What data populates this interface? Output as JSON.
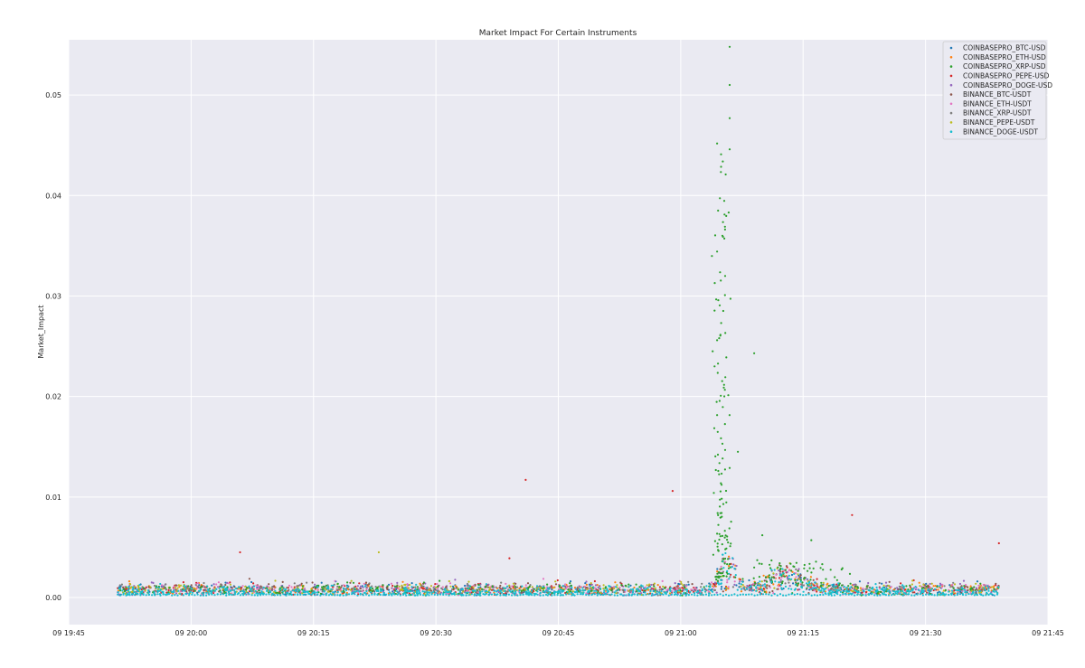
{
  "chart_data": {
    "type": "scatter",
    "title": "Market Impact For Certain Instruments",
    "xlabel": "",
    "ylabel": "Market_Impact",
    "x_start": "09 19:45",
    "x_end": "09 21:45",
    "x_tick_labels": [
      "09 19:45",
      "09 20:00",
      "09 20:15",
      "09 20:30",
      "09 20:45",
      "09 21:00",
      "09 21:15",
      "09 21:30",
      "09 21:45"
    ],
    "y_tick_labels": [
      "0.00",
      "0.01",
      "0.02",
      "0.03",
      "0.04",
      "0.05"
    ],
    "y_ticks": [
      0,
      0.01,
      0.02,
      0.03,
      0.04,
      0.05
    ],
    "ylim": [
      -0.0027,
      0.0555
    ],
    "data_start": "09 19:51",
    "data_end": "09 21:39",
    "grid": true,
    "legend_position": "top-right",
    "series": [
      {
        "name": "COINBASEPRO_BTC-USD",
        "color": "#1f77b4"
      },
      {
        "name": "COINBASEPRO_ETH-USD",
        "color": "#ff7f0e"
      },
      {
        "name": "COINBASEPRO_XRP-USD",
        "color": "#2ca02c"
      },
      {
        "name": "COINBASEPRO_PEPE-USD",
        "color": "#d62728"
      },
      {
        "name": "COINBASEPRO_DOGE-USD",
        "color": "#9467bd"
      },
      {
        "name": "BINANCE_BTC-USDT",
        "color": "#8c564b"
      },
      {
        "name": "BINANCE_ETH-USDT",
        "color": "#e377c2"
      },
      {
        "name": "BINANCE_XRP-USDT",
        "color": "#7f7f7f"
      },
      {
        "name": "BINANCE_PEPE-USDT",
        "color": "#bcbd22"
      },
      {
        "name": "BINANCE_DOGE-USDT",
        "color": "#17becf"
      }
    ],
    "highlights": [
      {
        "series": "COINBASEPRO_XRP-USD",
        "x": "09 21:06",
        "y": 0.0548
      },
      {
        "series": "COINBASEPRO_XRP-USD",
        "x": "09 21:06",
        "y": 0.051
      },
      {
        "series": "COINBASEPRO_XRP-USD",
        "x": "09 21:06",
        "y": 0.0477
      },
      {
        "series": "COINBASEPRO_XRP-USD",
        "x": "09 21:06",
        "y": 0.0446
      },
      {
        "series": "COINBASEPRO_XRP-USD",
        "x": "09 21:09",
        "y": 0.0243
      },
      {
        "series": "COINBASEPRO_XRP-USD",
        "x": "09 21:07",
        "y": 0.0145
      },
      {
        "series": "COINBASEPRO_PEPE-USD",
        "x": "09 20:41",
        "y": 0.0117
      },
      {
        "series": "COINBASEPRO_PEPE-USD",
        "x": "09 20:59",
        "y": 0.0106
      },
      {
        "series": "COINBASEPRO_PEPE-USD",
        "x": "09 21:21",
        "y": 0.0082
      },
      {
        "series": "COINBASEPRO_XRP-USD",
        "x": "09 21:10",
        "y": 0.0062
      },
      {
        "series": "COINBASEPRO_XRP-USD",
        "x": "09 21:16",
        "y": 0.0057
      },
      {
        "series": "COINBASEPRO_PEPE-USD",
        "x": "09 20:06",
        "y": 0.0045
      },
      {
        "series": "BINANCE_PEPE-USDT",
        "x": "09 20:23",
        "y": 0.0045
      },
      {
        "series": "COINBASEPRO_PEPE-USD",
        "x": "09 21:39",
        "y": 0.0054
      },
      {
        "series": "COINBASEPRO_PEPE-USD",
        "x": "09 20:39",
        "y": 0.0039
      }
    ]
  }
}
